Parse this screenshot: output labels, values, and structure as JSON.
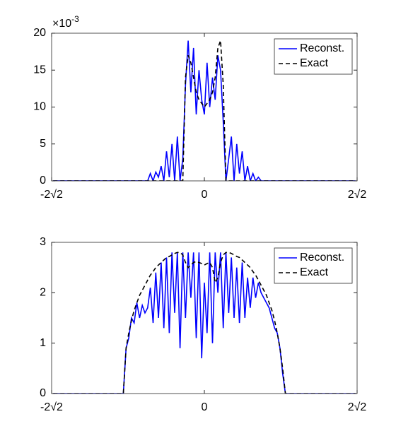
{
  "chart_data": [
    {
      "type": "line",
      "y_multiplier": {
        "base": "×10",
        "exponent": "-3"
      },
      "x": [
        -2.8,
        -1.6,
        -1.55,
        -1.5,
        -1.45,
        -1.4,
        -1.35,
        -1.3,
        -1.25,
        -1.2,
        -1.15,
        -1.1,
        -1.05,
        -1,
        -0.95,
        -0.9,
        -0.85,
        -0.8,
        -0.75,
        -0.7,
        -0.65,
        -0.6,
        -0.55,
        -0.5,
        -0.45,
        -0.4,
        -0.35,
        -0.3,
        -0.25,
        -0.2,
        -0.15,
        -0.1,
        -0.05,
        0,
        0.05,
        0.1,
        0.15,
        0.2,
        0.25,
        0.3,
        0.35,
        0.4,
        0.45,
        0.5,
        0.55,
        0.6,
        0.65,
        0.7,
        0.75,
        0.8,
        0.85,
        0.9,
        0.95,
        1,
        1.05,
        1.1,
        1.15,
        1.2,
        1.25,
        1.3,
        1.35,
        1.4,
        1.45,
        1.5,
        1.55,
        1.6,
        2.8
      ],
      "xlim": [
        -2.8284,
        2.8284
      ],
      "xticks": [
        {
          "value": -2.8284,
          "label": "-2√2"
        },
        0,
        {
          "value": 2.8284,
          "label": "2√2"
        }
      ],
      "ylim": [
        0,
        20
      ],
      "yticks": [
        0,
        5,
        10,
        15,
        20
      ],
      "legend": "northeast",
      "series": [
        {
          "name": "Reconst.",
          "color": "#0000ff",
          "dash": "solid",
          "values": [
            0,
            0,
            0,
            0,
            0,
            0,
            0,
            0,
            0,
            0,
            0,
            0,
            0,
            1,
            0,
            1.2,
            0.5,
            2,
            0,
            4,
            0.5,
            5,
            0,
            6,
            0,
            3,
            13,
            19,
            12,
            18,
            9,
            15,
            11,
            9,
            16,
            10,
            14,
            11,
            17,
            15,
            8,
            0,
            3,
            6,
            0,
            5,
            1,
            4,
            0,
            2,
            0,
            1,
            0,
            0.5,
            0,
            0,
            0,
            0,
            0,
            0,
            0,
            0,
            0,
            0,
            0,
            0,
            0
          ]
        },
        {
          "name": "Exact",
          "color": "#000000",
          "dash": "dashed",
          "values": [
            0,
            0,
            0,
            0,
            0,
            0,
            0,
            0,
            0,
            0,
            0,
            0,
            0,
            0,
            0,
            0,
            0,
            0,
            0,
            0,
            0,
            0,
            0,
            0,
            0,
            0,
            14,
            17,
            16,
            14,
            12,
            11,
            10.5,
            10,
            10.5,
            11,
            12,
            14,
            18,
            19,
            13,
            0,
            0,
            0,
            0,
            0,
            0,
            0,
            0,
            0,
            0,
            0,
            0,
            0,
            0,
            0,
            0,
            0,
            0,
            0,
            0,
            0,
            0,
            0,
            0,
            0,
            0
          ]
        }
      ]
    },
    {
      "type": "line",
      "x": [
        -2.8,
        -1.6,
        -1.55,
        -1.5,
        -1.45,
        -1.4,
        -1.35,
        -1.3,
        -1.25,
        -1.2,
        -1.15,
        -1.1,
        -1.05,
        -1,
        -0.95,
        -0.9,
        -0.85,
        -0.8,
        -0.75,
        -0.7,
        -0.65,
        -0.6,
        -0.55,
        -0.5,
        -0.45,
        -0.4,
        -0.35,
        -0.3,
        -0.25,
        -0.2,
        -0.15,
        -0.1,
        -0.05,
        0,
        0.05,
        0.1,
        0.15,
        0.2,
        0.25,
        0.3,
        0.35,
        0.4,
        0.45,
        0.5,
        0.55,
        0.6,
        0.65,
        0.7,
        0.75,
        0.8,
        0.85,
        0.9,
        0.95,
        1,
        1.05,
        1.1,
        1.15,
        1.2,
        1.25,
        1.3,
        1.35,
        1.4,
        1.45,
        1.5,
        1.55,
        1.6,
        2.8
      ],
      "xlim": [
        -2.8284,
        2.8284
      ],
      "xticks": [
        {
          "value": -2.8284,
          "label": "-2√2"
        },
        0,
        {
          "value": 2.8284,
          "label": "2√2"
        }
      ],
      "ylim": [
        0,
        3
      ],
      "yticks": [
        0,
        1,
        2,
        3
      ],
      "legend": "northeast",
      "series": [
        {
          "name": "Reconst.",
          "color": "#0000ff",
          "dash": "solid",
          "values": [
            0,
            0,
            0,
            0,
            0.9,
            1.1,
            1.5,
            1.4,
            1.8,
            1.5,
            1.75,
            1.6,
            1.7,
            2.1,
            1.4,
            2.4,
            1.5,
            2.6,
            1.3,
            2.7,
            1.2,
            2.8,
            1.6,
            2.8,
            0.9,
            2.8,
            1.5,
            2.8,
            1.9,
            2.8,
            1.1,
            2.8,
            0.7,
            2.2,
            1.2,
            2.8,
            1.0,
            2.8,
            2.0,
            2.8,
            1.3,
            2.8,
            1.6,
            2.7,
            1.5,
            2.5,
            1.4,
            2.6,
            1.5,
            2.3,
            1.7,
            2.3,
            1.9,
            2.2,
            2.0,
            1.9,
            1.8,
            1.7,
            1.5,
            1.3,
            1.2,
            0.9,
            0.4,
            0,
            0,
            0,
            0
          ]
        },
        {
          "name": "Exact",
          "color": "#000000",
          "dash": "dashed",
          "values": [
            0,
            0,
            0,
            0,
            0.9,
            1.2,
            1.45,
            1.65,
            1.8,
            1.95,
            2.05,
            2.15,
            2.25,
            2.35,
            2.42,
            2.5,
            2.55,
            2.6,
            2.65,
            2.7,
            2.72,
            2.75,
            2.78,
            2.8,
            2.8,
            2.75,
            2.6,
            2.5,
            2.55,
            2.6,
            2.62,
            2.6,
            2.58,
            2.55,
            2.58,
            2.6,
            2.5,
            2.2,
            2.3,
            2.6,
            2.75,
            2.8,
            2.8,
            2.78,
            2.75,
            2.72,
            2.7,
            2.65,
            2.6,
            2.55,
            2.5,
            2.42,
            2.35,
            2.25,
            2.15,
            2.05,
            1.95,
            1.8,
            1.65,
            1.45,
            1.2,
            0.9,
            0.5,
            0,
            0,
            0,
            0
          ]
        }
      ]
    }
  ]
}
